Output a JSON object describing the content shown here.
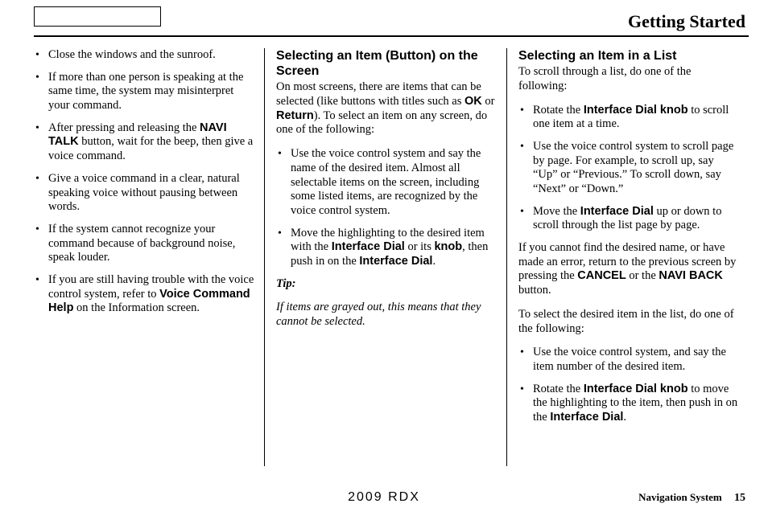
{
  "header": {
    "title": "Getting Started"
  },
  "columns": {
    "left": {
      "items": [
        {
          "text": "Close the windows and the sunroof."
        },
        {
          "text": "If more than one person is speaking at the same time, the system may misinterpret your command."
        },
        {
          "html": "After pressing and releasing the <span class=\"b\">NAVI TALK</span> button, wait for the beep, then give a voice command."
        },
        {
          "text": "Give a voice command in a clear, natural speaking voice without pausing between words."
        },
        {
          "text": "If the system cannot recognize your command because of background noise, speak louder."
        },
        {
          "html": "If you are still having trouble with the voice control system, refer to <span class=\"b\">Voice Command Help</span> on the Information screen."
        }
      ]
    },
    "middle": {
      "heading": "Selecting an Item (Button) on the Screen",
      "intro_html": "On most screens, there are items that can be selected (like buttons with titles such as <span class=\"b\">OK</span> or <span class=\"b\">Return</span>). To select an item on any screen, do one of the following:",
      "items": [
        {
          "text": "Use the voice control system and say the name of the desired item. Almost all selectable items on the screen, including some listed items, are recognized by the voice control system."
        },
        {
          "html": "Move the highlighting to the desired item with the <span class=\"b\">Interface Dial</span> or its <span class=\"b\">knob</span>, then push in on the <span class=\"b\">Interface Dial</span>."
        }
      ],
      "tip_label": "Tip:",
      "tip_body": "If items are grayed out, this means that they cannot be selected."
    },
    "right": {
      "heading": "Selecting an Item in a List",
      "intro": "To scroll through a list, do one of the following:",
      "items": [
        {
          "html": "Rotate the <span class=\"b\">Interface Dial knob</span> to scroll one item at a time."
        },
        {
          "text": "Use the voice control system to scroll page by page. For example, to scroll up, say “Up” or “Previous.” To scroll down, say “Next” or “Down.”"
        },
        {
          "html": "Move the <span class=\"b\">Interface Dial</span> up or down to scroll through the list page by page."
        }
      ],
      "para1_html": "If you cannot find the desired name, or have made an error, return to the previous screen by pressing the <span class=\"b\">CANCEL</span> or the <span class=\"b\">NAVI BACK</span> button.",
      "para2": "To select the desired item in the list, do one of the following:",
      "items2": [
        {
          "text": "Use the voice control system, and say the item number of the desired item."
        },
        {
          "html": "Rotate the <span class=\"b\">Interface Dial knob</span> to move the highlighting to the item, then push in on the <span class=\"b\">Interface Dial</span>."
        }
      ]
    }
  },
  "footer": {
    "model": "2009  RDX",
    "system_label": "Navigation System",
    "page_number": "15"
  }
}
